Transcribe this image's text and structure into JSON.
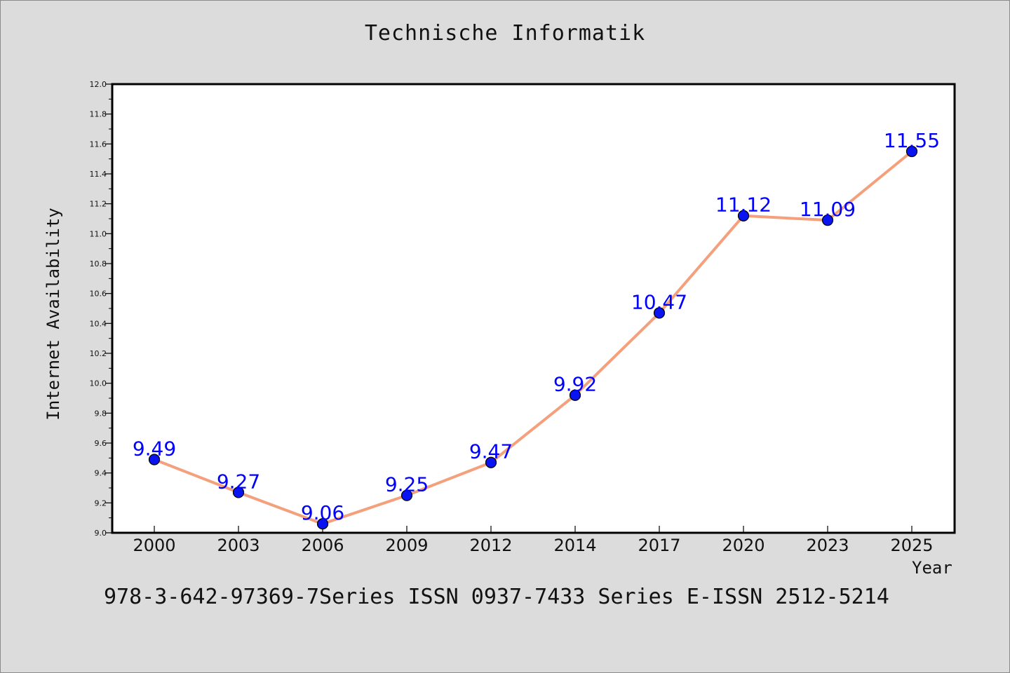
{
  "chart_data": {
    "type": "line",
    "title": "Technische Informatik",
    "xlabel": "Year",
    "ylabel": "Internet Availability",
    "categories": [
      "2000",
      "2003",
      "2006",
      "2009",
      "2012",
      "2014",
      "2017",
      "2020",
      "2023",
      "2025"
    ],
    "series": [
      {
        "values": [
          9.49,
          9.27,
          9.06,
          9.25,
          9.47,
          9.92,
          10.47,
          11.12,
          11.09,
          11.55
        ],
        "data_labels": [
          "9.49",
          "9.27",
          "9.06",
          "9.25",
          "9.47",
          "9.92",
          "10.47",
          "11.12",
          "11.09",
          "11.55"
        ],
        "line_color": "#f4a07c",
        "marker_color": "#0a14f0",
        "label_color": "#0000ff"
      }
    ],
    "ylim": [
      9.0,
      12.0
    ],
    "yticks": [
      "9.0",
      "9.2",
      "9.4",
      "9.6",
      "9.8",
      "10.0",
      "10.2",
      "10.4",
      "10.6",
      "10.8",
      "11.0",
      "11.2",
      "11.4",
      "11.6",
      "11.8",
      "12.0"
    ],
    "grid": false,
    "legend": "none"
  },
  "footnote": "978-3-642-97369-7Series ISSN 0937-7433 Series E-ISSN 2512-5214"
}
